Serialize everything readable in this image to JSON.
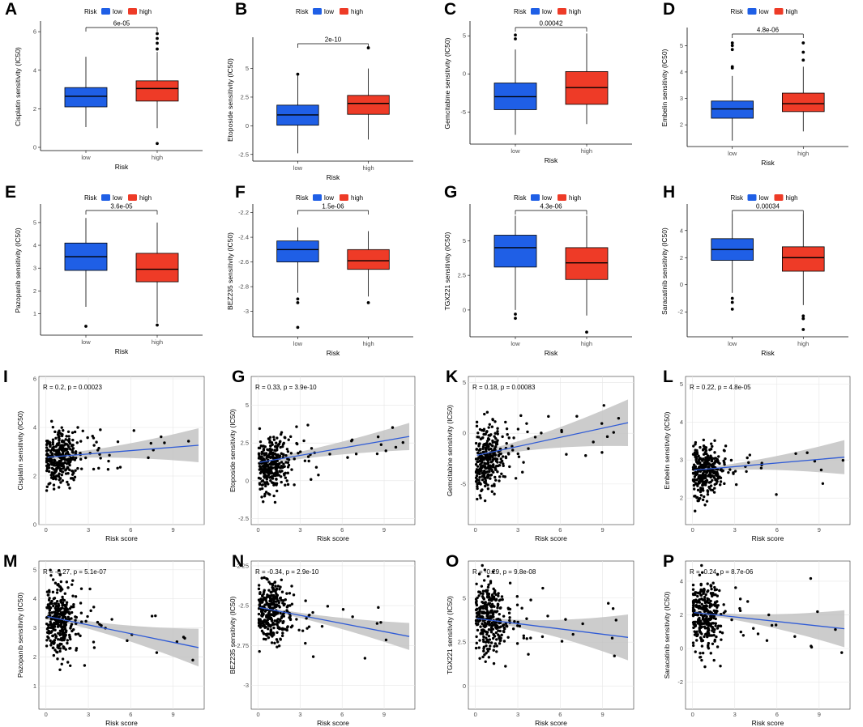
{
  "colors": {
    "low": "#1f5fe6",
    "high": "#ee3b27",
    "line": "#2f5bd6",
    "band": "#bfbfbf"
  },
  "legend": {
    "title": "Risk",
    "low": "low",
    "high": "high"
  },
  "chart_data": [
    {
      "panel": "A",
      "type": "box",
      "ylabel": "Cisplatin sensitivity (IC50)",
      "xlabel": "Risk",
      "categories": [
        "low",
        "high"
      ],
      "ylim": [
        0,
        6.3
      ],
      "yticks": [
        0,
        2,
        4,
        6
      ],
      "pvalue": "6e-05",
      "boxes": [
        {
          "q1": 2.1,
          "med": 2.65,
          "q3": 3.1,
          "lo": 1.05,
          "hi": 4.7,
          "out": []
        },
        {
          "q1": 2.4,
          "med": 3.05,
          "q3": 3.45,
          "lo": 1.0,
          "hi": 4.95,
          "out": [
            5.9,
            5.65,
            5.4,
            5.1,
            0.2
          ]
        }
      ]
    },
    {
      "panel": "B",
      "type": "box",
      "ylabel": "Etoposide sensitivity (IC50)",
      "xlabel": "Risk",
      "categories": [
        "low",
        "high"
      ],
      "ylim": [
        -2.8,
        7.3
      ],
      "yticks": [
        -2.5,
        0.0,
        2.5,
        5.0
      ],
      "pvalue": "2e-10",
      "boxes": [
        {
          "q1": 0.05,
          "med": 0.95,
          "q3": 1.8,
          "lo": -2.4,
          "hi": 4.4,
          "out": [
            4.5
          ]
        },
        {
          "q1": 1.0,
          "med": 1.95,
          "q3": 2.65,
          "lo": -1.2,
          "hi": 5.0,
          "out": [
            6.8
          ]
        }
      ]
    },
    {
      "panel": "C",
      "type": "box",
      "ylabel": "Gemcitabine sensitivity (IC50)",
      "xlabel": "Risk",
      "categories": [
        "low",
        "high"
      ],
      "ylim": [
        -8.8,
        6.3
      ],
      "yticks": [
        -5,
        0,
        5
      ],
      "pvalue": "0.00042",
      "boxes": [
        {
          "q1": -4.7,
          "med": -3.0,
          "q3": -1.2,
          "lo": -8.0,
          "hi": 3.2,
          "out": [
            4.6,
            5.1
          ]
        },
        {
          "q1": -4.0,
          "med": -1.8,
          "q3": 0.3,
          "lo": -6.6,
          "hi": 5.3,
          "out": []
        }
      ]
    },
    {
      "panel": "D",
      "type": "box",
      "ylabel": "Embelin sensitivity (IC50)",
      "xlabel": "Risk",
      "categories": [
        "low",
        "high"
      ],
      "ylim": [
        1.3,
        5.5
      ],
      "yticks": [
        2,
        3,
        4,
        5
      ],
      "pvalue": "4.8e-06",
      "boxes": [
        {
          "q1": 2.25,
          "med": 2.6,
          "q3": 2.9,
          "lo": 1.4,
          "hi": 3.85,
          "out": [
            5.1,
            5.0,
            4.85,
            4.2,
            4.15
          ]
        },
        {
          "q1": 2.5,
          "med": 2.8,
          "q3": 3.2,
          "lo": 1.75,
          "hi": 4.2,
          "out": [
            5.1,
            4.75,
            4.45
          ]
        }
      ]
    },
    {
      "panel": "E",
      "type": "box",
      "ylabel": "Pazopanib sensitivity (IC50)",
      "xlabel": "Risk",
      "categories": [
        "low",
        "high"
      ],
      "ylim": [
        0.2,
        5.6
      ],
      "yticks": [
        1,
        2,
        3,
        4,
        5
      ],
      "pvalue": "3.6e-05",
      "boxes": [
        {
          "q1": 2.9,
          "med": 3.5,
          "q3": 4.1,
          "lo": 1.3,
          "hi": 5.2,
          "out": [
            0.45
          ]
        },
        {
          "q1": 2.4,
          "med": 2.95,
          "q3": 3.65,
          "lo": 0.6,
          "hi": 5.0,
          "out": [
            0.5
          ]
        }
      ]
    },
    {
      "panel": "F",
      "type": "box",
      "ylabel": "BEZ235 sensitivity (IC50)",
      "xlabel": "Risk",
      "categories": [
        "low",
        "high"
      ],
      "ylim": [
        -3.18,
        -2.17
      ],
      "yticks": [
        -3.0,
        -2.8,
        -2.6,
        -2.4,
        -2.2
      ],
      "pvalue": "1.5e-06",
      "boxes": [
        {
          "q1": -2.6,
          "med": -2.5,
          "q3": -2.43,
          "lo": -2.85,
          "hi": -2.32,
          "out": [
            -2.9,
            -2.93,
            -3.13
          ]
        },
        {
          "q1": -2.66,
          "med": -2.59,
          "q3": -2.5,
          "lo": -2.88,
          "hi": -2.35,
          "out": [
            -2.93
          ]
        }
      ]
    },
    {
      "panel": "G",
      "type": "box",
      "ylabel": "TGX221 sensitivity (IC50)",
      "xlabel": "Risk",
      "categories": [
        "low",
        "high"
      ],
      "ylim": [
        -1.7,
        7.3
      ],
      "yticks": [
        0.0,
        2.5,
        5.0
      ],
      "pvalue": "4.3e-06",
      "boxes": [
        {
          "q1": 3.1,
          "med": 4.5,
          "q3": 5.4,
          "lo": 0.0,
          "hi": 6.8,
          "out": [
            -0.3,
            -0.6
          ]
        },
        {
          "q1": 2.2,
          "med": 3.4,
          "q3": 4.5,
          "lo": -0.4,
          "hi": 6.8,
          "out": [
            -1.6
          ]
        }
      ]
    },
    {
      "panel": "H",
      "type": "box",
      "ylabel": "Saracatinib sensitivity (IC50)",
      "xlabel": "Risk",
      "categories": [
        "low",
        "high"
      ],
      "ylim": [
        -3.6,
        5.6
      ],
      "yticks": [
        -2,
        0,
        2,
        4
      ],
      "pvalue": "0.00034",
      "boxes": [
        {
          "q1": 1.8,
          "med": 2.6,
          "q3": 3.4,
          "lo": -0.6,
          "hi": 5.2,
          "out": [
            -1.0,
            -1.3,
            -1.8
          ]
        },
        {
          "q1": 1.0,
          "med": 2.0,
          "q3": 2.8,
          "lo": -1.5,
          "hi": 5.2,
          "out": [
            -2.3,
            -2.5,
            -3.3
          ]
        }
      ]
    },
    {
      "panel": "I",
      "type": "scatter",
      "ylabel": "Cisplatin sensitivity (IC50)",
      "xlabel": "Risk score",
      "xlim": [
        -0.5,
        11.2
      ],
      "ylim": [
        0,
        6.1
      ],
      "xticks": [
        0,
        3,
        6,
        9
      ],
      "yticks": [
        0,
        2,
        4,
        6
      ],
      "stat": "R = 0.2, p = 0.00023",
      "fit": [
        2.77,
        0.046
      ],
      "band": [
        0.12,
        0.7
      ],
      "yc": 2.75,
      "sd": 0.85,
      "seed": 11
    },
    {
      "panel": "G",
      "type": "scatter",
      "ylabel": "Etoposide sensitivity (IC50)",
      "xlabel": "Risk score",
      "xlim": [
        -0.5,
        11.2
      ],
      "ylim": [
        -2.9,
        6.9
      ],
      "xticks": [
        0,
        3,
        6,
        9
      ],
      "yticks": [
        -2.5,
        0.0,
        2.5,
        5.0
      ],
      "stat": "R = 0.33, p = 3.9e-10",
      "fit": [
        1.2,
        0.16
      ],
      "band": [
        0.2,
        0.9
      ],
      "yc": 1.1,
      "sd": 1.4,
      "seed": 23
    },
    {
      "panel": "K",
      "type": "scatter",
      "ylabel": "Gemcitabine sensitivity (IC50)",
      "xlabel": "Risk score",
      "xlim": [
        -0.5,
        11.2
      ],
      "ylim": [
        -9,
        5.6
      ],
      "xticks": [
        0,
        3,
        6,
        9
      ],
      "yticks": [
        -5,
        0,
        5
      ],
      "stat": "R = 0.18, p = 0.00083",
      "fit": [
        -2.2,
        0.3
      ],
      "band": [
        0.4,
        2.3
      ],
      "yc": -2.5,
      "sd": 2.8,
      "seed": 37
    },
    {
      "panel": "L",
      "type": "scatter",
      "ylabel": "Embelin sensitivity (IC50)",
      "xlabel": "Risk score",
      "xlim": [
        -0.5,
        11.2
      ],
      "ylim": [
        1.3,
        5.2
      ],
      "xticks": [
        0,
        3,
        6,
        9
      ],
      "yticks": [
        2,
        3,
        4,
        5
      ],
      "stat": "R = 0.22, p = 4.8e-05",
      "fit": [
        2.73,
        0.032
      ],
      "band": [
        0.06,
        0.45
      ],
      "yc": 2.7,
      "sd": 0.55,
      "seed": 41
    },
    {
      "panel": "M",
      "type": "scatter",
      "ylabel": "Pazopanib sensitivity (IC50)",
      "xlabel": "Risk score",
      "xlim": [
        -0.5,
        11.2
      ],
      "ylim": [
        0.2,
        5.3
      ],
      "xticks": [
        0,
        3,
        6,
        9
      ],
      "yticks": [
        1,
        2,
        3,
        4,
        5
      ],
      "stat": "R = -0.27, p = 5.1e-07",
      "fit": [
        3.4,
        -0.1
      ],
      "band": [
        0.1,
        0.65
      ],
      "yc": 3.3,
      "sd": 1.0,
      "seed": 53
    },
    {
      "panel": "N",
      "type": "scatter",
      "ylabel": "BEZ235 sensitivity (IC50)",
      "xlabel": "Risk score",
      "xlim": [
        -0.5,
        11.2
      ],
      "ylim": [
        -3.15,
        -2.22
      ],
      "xticks": [
        0,
        3,
        6,
        9
      ],
      "yticks": [
        -3.0,
        -2.75,
        -2.5,
        -2.25
      ],
      "stat": "R = -0.34, p = 2.9e-10",
      "fit": [
        -2.51,
        -0.017
      ],
      "band": [
        0.012,
        0.085
      ],
      "yc": -2.53,
      "sd": 0.15,
      "seed": 67
    },
    {
      "panel": "O",
      "type": "scatter",
      "ylabel": "TGX221 sensitivity (IC50)",
      "xlabel": "Risk score",
      "xlim": [
        -0.5,
        11.2
      ],
      "ylim": [
        -1.3,
        7.1
      ],
      "xticks": [
        0,
        3,
        6,
        9
      ],
      "yticks": [
        0.0,
        2.5,
        5.0
      ],
      "stat": "R = -0.29, p = 9.8e-08",
      "fit": [
        3.85,
        -0.1
      ],
      "band": [
        0.15,
        1.3
      ],
      "yc": 4.0,
      "sd": 1.7,
      "seed": 79
    },
    {
      "panel": "P",
      "type": "scatter",
      "ylabel": "Saracatinib sensitivity (IC50)",
      "xlabel": "Risk score",
      "xlim": [
        -0.5,
        11.2
      ],
      "ylim": [
        -3.6,
        5.2
      ],
      "xticks": [
        0,
        3,
        6,
        9
      ],
      "yticks": [
        -2,
        0,
        2,
        4
      ],
      "stat": "R = -0.24, p = 8.7e-06",
      "fit": [
        2.15,
        -0.09
      ],
      "band": [
        0.12,
        1.1
      ],
      "yc": 2.0,
      "sd": 1.6,
      "seed": 83
    }
  ]
}
